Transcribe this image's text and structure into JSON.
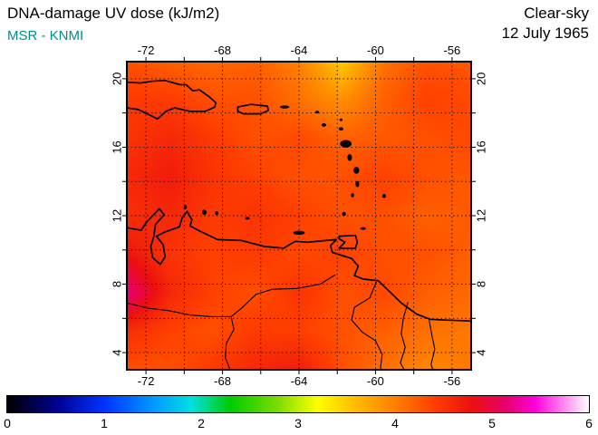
{
  "header": {
    "title": "DNA-damage UV dose (kJ/m2)",
    "source": "MSR - KNMI",
    "source_color": "#008E8E",
    "condition": "Clear-sky",
    "date": "12 July 1965"
  },
  "chart_data": {
    "type": "heatmap",
    "title": "DNA-damage UV dose (kJ/m2)",
    "units": "kJ/m2",
    "region": "Caribbean / northern South America",
    "frame": {
      "lon": [
        -73,
        -55
      ],
      "lat": [
        3,
        21
      ]
    },
    "ticks": {
      "lon_step": 2,
      "lat_step": 2,
      "lon_labeled": [
        -72,
        -68,
        -64,
        -60,
        -56
      ],
      "lat_labeled": [
        4,
        8,
        12,
        16,
        20
      ]
    },
    "grid_lons": [
      -72,
      -70,
      -68,
      -66,
      -64,
      -62,
      -60,
      -58,
      -56
    ],
    "grid_lats": [
      20,
      18,
      16,
      14,
      12,
      10,
      8,
      6,
      4
    ],
    "values_kj_m2": [
      [
        4.3,
        4.2,
        4.15,
        4.2,
        4.0,
        3.5,
        4.1,
        4.3,
        4.25
      ],
      [
        4.45,
        4.45,
        4.3,
        4.3,
        4.1,
        3.9,
        4.2,
        4.4,
        4.35
      ],
      [
        4.5,
        4.6,
        4.45,
        4.3,
        4.35,
        4.2,
        4.25,
        4.3,
        4.35
      ],
      [
        4.6,
        4.7,
        4.5,
        4.4,
        4.3,
        4.3,
        4.4,
        4.3,
        4.25
      ],
      [
        4.55,
        4.6,
        4.45,
        4.5,
        4.4,
        4.3,
        4.3,
        4.2,
        4.25
      ],
      [
        4.75,
        4.5,
        4.4,
        4.45,
        4.35,
        4.4,
        4.3,
        4.3,
        4.2
      ],
      [
        5.2,
        4.6,
        4.4,
        4.3,
        4.5,
        4.3,
        4.35,
        4.2,
        4.15
      ],
      [
        4.55,
        4.4,
        4.3,
        4.45,
        4.4,
        4.3,
        4.2,
        4.1,
        4.05
      ],
      [
        4.3,
        4.3,
        4.45,
        4.6,
        4.7,
        4.3,
        4.1,
        3.95,
        4.05
      ]
    ],
    "colorbar": {
      "min": 0,
      "max": 6,
      "tick_labels": [
        "0",
        "1",
        "2",
        "3",
        "4",
        "5",
        "6"
      ],
      "stops": [
        [
          0.0,
          "#000000"
        ],
        [
          0.5,
          "#00008f"
        ],
        [
          1.0,
          "#0033ff"
        ],
        [
          1.5,
          "#0099ff"
        ],
        [
          1.9,
          "#00e0e0"
        ],
        [
          2.3,
          "#00cc00"
        ],
        [
          2.8,
          "#7fdd00"
        ],
        [
          3.2,
          "#ffff00"
        ],
        [
          3.6,
          "#ffbb00"
        ],
        [
          4.0,
          "#ff8000"
        ],
        [
          4.4,
          "#ff4000"
        ],
        [
          4.8,
          "#ec1010"
        ],
        [
          5.15,
          "#e8006e"
        ],
        [
          5.45,
          "#ff00dd"
        ],
        [
          5.75,
          "#ff8af0"
        ],
        [
          6.0,
          "#ffffff"
        ]
      ]
    },
    "coastlines": {
      "outlines": [
        {
          "name": "hispaniola",
          "closed": false,
          "pts": [
            [
              -73,
              19.8
            ],
            [
              -72.3,
              19.75
            ],
            [
              -71.7,
              19.85
            ],
            [
              -71.0,
              19.9
            ],
            [
              -70.2,
              19.65
            ],
            [
              -69.9,
              19.65
            ],
            [
              -69.55,
              19.3
            ],
            [
              -69.2,
              19.35
            ],
            [
              -68.7,
              18.95
            ],
            [
              -68.35,
              18.6
            ],
            [
              -68.4,
              18.35
            ],
            [
              -68.9,
              18.1
            ],
            [
              -69.7,
              18.1
            ],
            [
              -70.5,
              18.3
            ],
            [
              -70.95,
              18.1
            ],
            [
              -71.4,
              17.65
            ],
            [
              -71.75,
              17.85
            ],
            [
              -72.4,
              18.2
            ],
            [
              -73,
              18.3
            ]
          ]
        },
        {
          "name": "puerto-rico",
          "closed": true,
          "pts": [
            [
              -67.2,
              18.35
            ],
            [
              -66.5,
              18.5
            ],
            [
              -65.65,
              18.4
            ],
            [
              -65.6,
              18.15
            ],
            [
              -66.0,
              17.95
            ],
            [
              -66.9,
              17.95
            ],
            [
              -67.2,
              18.1
            ]
          ]
        },
        {
          "name": "trinidad",
          "closed": true,
          "pts": [
            [
              -61.9,
              10.8
            ],
            [
              -61.05,
              10.85
            ],
            [
              -60.95,
              10.45
            ],
            [
              -61.05,
              10.1
            ],
            [
              -61.9,
              10.1
            ],
            [
              -61.6,
              10.45
            ],
            [
              -61.9,
              10.65
            ]
          ]
        },
        {
          "name": "south-america-coast",
          "closed": false,
          "pts": [
            [
              -73,
              11.3
            ],
            [
              -72.25,
              11.15
            ],
            [
              -71.95,
              11.65
            ],
            [
              -71.3,
              12.4
            ],
            [
              -71.05,
              12.05
            ],
            [
              -71.5,
              11.5
            ],
            [
              -71.6,
              10.75
            ],
            [
              -71.75,
              10.2
            ],
            [
              -71.65,
              9.55
            ],
            [
              -71.25,
              9.15
            ],
            [
              -71.0,
              9.6
            ],
            [
              -71.1,
              10.3
            ],
            [
              -71.45,
              10.8
            ],
            [
              -71.0,
              11.05
            ],
            [
              -70.25,
              11.35
            ],
            [
              -70.1,
              11.9
            ],
            [
              -69.85,
              12.25
            ],
            [
              -69.6,
              11.75
            ],
            [
              -69.7,
              11.4
            ],
            [
              -69.1,
              11.05
            ],
            [
              -68.25,
              10.6
            ],
            [
              -67.0,
              10.55
            ],
            [
              -65.8,
              10.2
            ],
            [
              -64.8,
              10.1
            ],
            [
              -64.2,
              10.5
            ],
            [
              -63.55,
              10.45
            ],
            [
              -62.6,
              10.55
            ],
            [
              -62.05,
              10.6
            ],
            [
              -62.35,
              10.25
            ],
            [
              -62.25,
              9.85
            ],
            [
              -61.25,
              9.5
            ],
            [
              -60.9,
              9.05
            ],
            [
              -61.1,
              8.5
            ],
            [
              -60.65,
              8.3
            ],
            [
              -59.85,
              8.2
            ],
            [
              -58.65,
              6.9
            ],
            [
              -57.85,
              6.25
            ],
            [
              -57.15,
              5.95
            ],
            [
              -56.35,
              5.9
            ],
            [
              -55.0,
              5.85
            ]
          ]
        }
      ],
      "rivers": [
        {
          "name": "orinoco-river",
          "pts": [
            [
              -62.1,
              8.55
            ],
            [
              -62.9,
              8.0
            ],
            [
              -64.1,
              7.75
            ],
            [
              -65.4,
              7.7
            ],
            [
              -66.25,
              7.4
            ],
            [
              -67.0,
              6.6
            ],
            [
              -67.55,
              6.1
            ],
            [
              -67.4,
              5.35
            ],
            [
              -67.8,
              4.55
            ],
            [
              -67.85,
              3.7
            ],
            [
              -67.6,
              3.0
            ]
          ]
        },
        {
          "name": "meta-river",
          "pts": [
            [
              -73,
              6.9
            ],
            [
              -71.9,
              6.6
            ],
            [
              -70.8,
              6.45
            ],
            [
              -69.7,
              6.2
            ],
            [
              -68.55,
              6.1
            ],
            [
              -67.55,
              6.1
            ]
          ]
        },
        {
          "name": "guyana-border",
          "pts": [
            [
              -59.95,
              8.15
            ],
            [
              -60.3,
              7.2
            ],
            [
              -61.1,
              6.65
            ],
            [
              -61.25,
              5.9
            ],
            [
              -60.7,
              5.2
            ],
            [
              -60.0,
              4.7
            ],
            [
              -59.65,
              3.9
            ],
            [
              -59.75,
              3.0
            ]
          ]
        },
        {
          "name": "essequibo-river",
          "pts": [
            [
              -58.3,
              6.95
            ],
            [
              -58.55,
              6.0
            ],
            [
              -58.65,
              5.1
            ],
            [
              -58.45,
              4.3
            ],
            [
              -58.7,
              3.4
            ],
            [
              -58.5,
              3.0
            ]
          ]
        },
        {
          "name": "courantyne-river",
          "pts": [
            [
              -57.2,
              5.9
            ],
            [
              -57.05,
              5.0
            ],
            [
              -56.9,
              4.2
            ],
            [
              -57.1,
              3.3
            ],
            [
              -57.0,
              3.0
            ]
          ]
        }
      ],
      "islands": [
        {
          "name": "virgin-islands",
          "c": [
            -64.75,
            18.35
          ],
          "rx": 0.25,
          "ry": 0.09
        },
        {
          "name": "st-martin",
          "c": [
            -63.05,
            18.05
          ],
          "rx": 0.1,
          "ry": 0.08
        },
        {
          "name": "st-kitts",
          "c": [
            -62.7,
            17.3
          ],
          "rx": 0.12,
          "ry": 0.1
        },
        {
          "name": "barbuda",
          "c": [
            -61.8,
            17.6
          ],
          "rx": 0.08,
          "ry": 0.08
        },
        {
          "name": "antigua",
          "c": [
            -61.8,
            17.07
          ],
          "rx": 0.12,
          "ry": 0.1
        },
        {
          "name": "guadeloupe",
          "c": [
            -61.55,
            16.2
          ],
          "rx": 0.3,
          "ry": 0.22
        },
        {
          "name": "dominica",
          "c": [
            -61.35,
            15.4
          ],
          "rx": 0.12,
          "ry": 0.2
        },
        {
          "name": "martinique",
          "c": [
            -61.0,
            14.65
          ],
          "rx": 0.15,
          "ry": 0.2
        },
        {
          "name": "st-lucia",
          "c": [
            -60.95,
            13.85
          ],
          "rx": 0.1,
          "ry": 0.18
        },
        {
          "name": "st-vincent",
          "c": [
            -61.2,
            13.2
          ],
          "rx": 0.08,
          "ry": 0.12
        },
        {
          "name": "grenada",
          "c": [
            -61.65,
            12.1
          ],
          "rx": 0.1,
          "ry": 0.12
        },
        {
          "name": "barbados",
          "c": [
            -59.55,
            13.15
          ],
          "rx": 0.1,
          "ry": 0.12
        },
        {
          "name": "tobago",
          "c": [
            -60.65,
            11.25
          ],
          "rx": 0.15,
          "ry": 0.08
        },
        {
          "name": "margarita",
          "c": [
            -64.0,
            11.0
          ],
          "rx": 0.3,
          "ry": 0.12
        },
        {
          "name": "los-roques",
          "c": [
            -66.7,
            11.85
          ],
          "rx": 0.12,
          "ry": 0.06
        },
        {
          "name": "aruba",
          "c": [
            -69.95,
            12.5
          ],
          "rx": 0.08,
          "ry": 0.12
        },
        {
          "name": "curacao",
          "c": [
            -68.95,
            12.2
          ],
          "rx": 0.12,
          "ry": 0.15
        },
        {
          "name": "bonaire",
          "c": [
            -68.3,
            12.15
          ],
          "rx": 0.08,
          "ry": 0.12
        }
      ]
    }
  }
}
